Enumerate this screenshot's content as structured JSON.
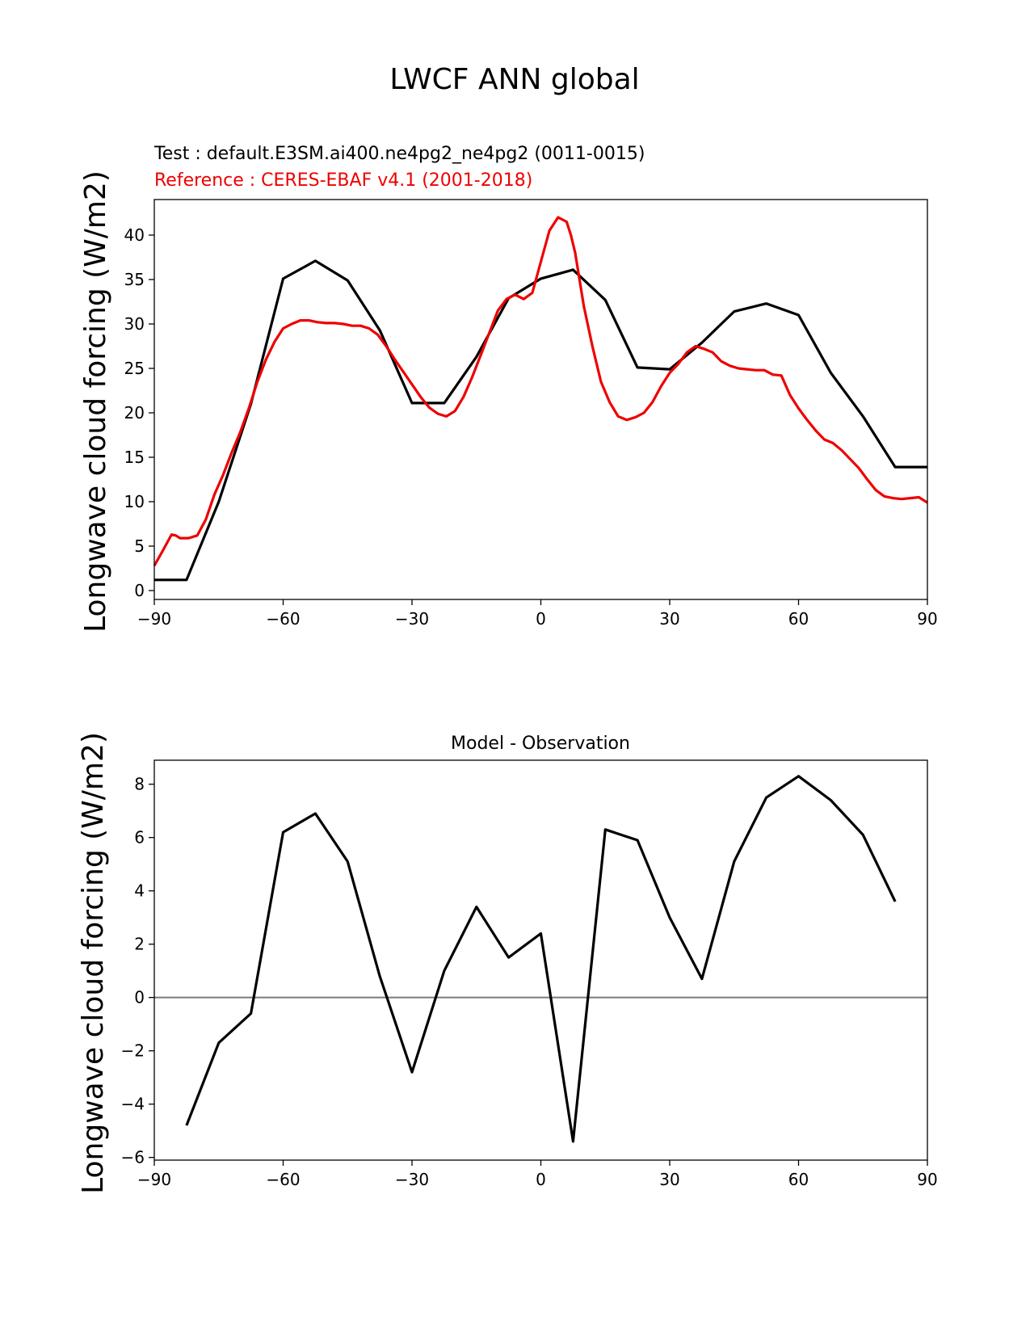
{
  "figure": {
    "title": "LWCF ANN global"
  },
  "colors": {
    "test": "#000000",
    "reference": "#ee0000",
    "zero_line": "#808080"
  },
  "chart_data": [
    {
      "type": "line",
      "test_label": "Test : default.E3SM.ai400.ne4pg2_ne4pg2 (0011-0015)",
      "reference_label": "Reference : CERES-EBAF v4.1 (2001-2018)",
      "ylabel": "Longwave cloud forcing (W/m2)",
      "xlim": [
        -90,
        90
      ],
      "ylim": [
        -1,
        44
      ],
      "xticks": [
        -90,
        -60,
        -30,
        0,
        30,
        60,
        90
      ],
      "xtick_labels": [
        "−90",
        "−60",
        "−30",
        "0",
        "30",
        "60",
        "90"
      ],
      "yticks": [
        0,
        5,
        10,
        15,
        20,
        25,
        30,
        35,
        40
      ],
      "yticks_labels": [
        "0",
        "5",
        "10",
        "15",
        "20",
        "25",
        "30",
        "35",
        "40"
      ],
      "series": [
        {
          "role": "test",
          "x": [
            -90,
            -82.5,
            -75,
            -67.5,
            -60,
            -52.5,
            -45,
            -37.5,
            -30,
            -22.5,
            -15,
            -7.5,
            0,
            7.5,
            15,
            22.5,
            30,
            37.5,
            45,
            52.5,
            60,
            67.5,
            75,
            82.5,
            90
          ],
          "y": [
            1.2,
            1.2,
            10.0,
            21.0,
            35.1,
            37.1,
            34.9,
            29.3,
            21.1,
            21.1,
            26.3,
            32.9,
            35.1,
            36.1,
            32.7,
            25.1,
            24.9,
            27.9,
            31.4,
            32.3,
            31.0,
            24.5,
            19.6,
            13.9,
            13.9
          ]
        },
        {
          "role": "reference",
          "x": [
            -90,
            -88,
            -86,
            -85,
            -84,
            -82,
            -80,
            -78,
            -76,
            -74,
            -72,
            -70,
            -68,
            -66,
            -64,
            -62,
            -60,
            -58,
            -56,
            -54,
            -52,
            -50,
            -48,
            -46,
            -44,
            -42,
            -40,
            -38,
            -36,
            -34,
            -32,
            -30,
            -28,
            -26,
            -24,
            -22,
            -20,
            -18,
            -16,
            -14,
            -12,
            -10,
            -8,
            -6,
            -4,
            -2,
            0,
            2,
            4,
            6,
            7,
            8,
            10,
            12,
            14,
            16,
            18,
            20,
            22,
            24,
            26,
            28,
            30,
            32,
            34,
            36,
            38,
            40,
            42,
            44,
            46,
            48,
            50,
            52,
            54,
            56,
            58,
            60,
            62,
            64,
            66,
            68,
            70,
            72,
            74,
            76,
            78,
            80,
            82,
            84,
            86,
            88,
            90
          ],
          "y": [
            2.8,
            4.5,
            6.3,
            6.2,
            5.9,
            5.9,
            6.2,
            8.0,
            10.8,
            13.0,
            15.5,
            17.8,
            20.5,
            23.5,
            26.0,
            28.0,
            29.5,
            30.0,
            30.4,
            30.4,
            30.2,
            30.1,
            30.1,
            30.0,
            29.8,
            29.8,
            29.5,
            28.8,
            27.5,
            26.0,
            24.6,
            23.2,
            21.8,
            20.6,
            19.9,
            19.6,
            20.2,
            21.8,
            24.0,
            26.5,
            29.0,
            31.5,
            32.8,
            33.3,
            32.8,
            33.5,
            37.0,
            40.5,
            42.0,
            41.5,
            40.0,
            38.0,
            32.0,
            27.5,
            23.5,
            21.2,
            19.6,
            19.2,
            19.5,
            20.0,
            21.2,
            23.0,
            24.5,
            25.5,
            26.8,
            27.5,
            27.2,
            26.8,
            25.8,
            25.3,
            25.0,
            24.9,
            24.8,
            24.8,
            24.3,
            24.2,
            22.0,
            20.5,
            19.2,
            18.0,
            17.0,
            16.6,
            15.8,
            14.8,
            13.8,
            12.5,
            11.3,
            10.6,
            10.4,
            10.3,
            10.4,
            10.5,
            9.9
          ]
        }
      ]
    },
    {
      "type": "line",
      "title": "Model - Observation",
      "ylabel": "Longwave cloud forcing (W/m2)",
      "xlim": [
        -90,
        90
      ],
      "ylim": [
        -6.1,
        8.9
      ],
      "xticks": [
        -90,
        -60,
        -30,
        0,
        30,
        60,
        90
      ],
      "xtick_labels": [
        "−90",
        "−60",
        "−30",
        "0",
        "30",
        "60",
        "90"
      ],
      "yticks": [
        -6,
        -4,
        -2,
        0,
        2,
        4,
        6,
        8
      ],
      "yticks_labels": [
        "−6",
        "−4",
        "−2",
        "0",
        "2",
        "4",
        "6",
        "8"
      ],
      "zero_line": 0,
      "series": [
        {
          "role": "difference",
          "x": [
            -82.5,
            -75,
            -67.5,
            -60,
            -52.5,
            -45,
            -37.5,
            -30,
            -22.5,
            -15,
            -7.5,
            0,
            7.5,
            15,
            22.5,
            30,
            37.5,
            45,
            52.5,
            60,
            67.5,
            75,
            82.5
          ],
          "y": [
            -4.8,
            -1.7,
            -0.6,
            6.2,
            6.9,
            5.1,
            0.8,
            -2.8,
            1.0,
            3.4,
            1.5,
            2.4,
            -5.4,
            6.3,
            5.9,
            3.0,
            0.7,
            5.1,
            7.5,
            8.3,
            7.4,
            6.1,
            3.6
          ]
        }
      ]
    }
  ]
}
